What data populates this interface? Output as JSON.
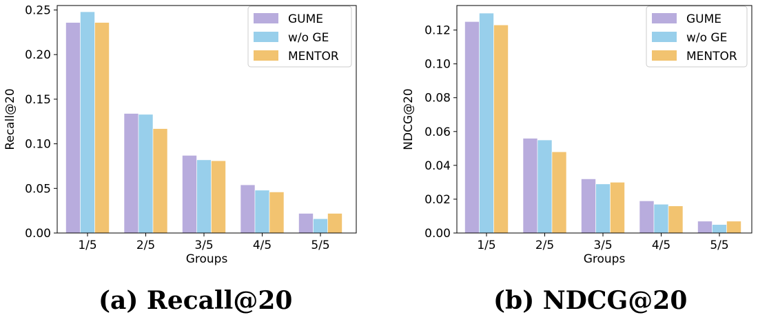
{
  "colors": {
    "GUME": "#b8acdd",
    "w/o GE": "#98cfeb",
    "MENTOR": "#f2c370"
  },
  "chart_data": [
    {
      "type": "bar",
      "caption": "(a) Recall@20",
      "xlabel": "Groups",
      "ylabel": "Recall@20",
      "categories": [
        "1/5",
        "2/5",
        "3/5",
        "4/5",
        "5/5"
      ],
      "ylim": [
        0,
        0.255
      ],
      "yticks": [
        0.0,
        0.05,
        0.1,
        0.15,
        0.2,
        0.25
      ],
      "ytick_labels": [
        "0.00",
        "0.05",
        "0.10",
        "0.15",
        "0.20",
        "0.25"
      ],
      "legend_position": "top-right",
      "series": [
        {
          "name": "GUME",
          "values": [
            0.236,
            0.134,
            0.087,
            0.054,
            0.022
          ]
        },
        {
          "name": "w/o GE",
          "values": [
            0.248,
            0.133,
            0.082,
            0.048,
            0.016
          ]
        },
        {
          "name": "MENTOR",
          "values": [
            0.236,
            0.117,
            0.081,
            0.046,
            0.022
          ]
        }
      ]
    },
    {
      "type": "bar",
      "caption": "(b) NDCG@20",
      "xlabel": "Groups",
      "ylabel": "NDCG@20",
      "categories": [
        "1/5",
        "2/5",
        "3/5",
        "4/5",
        "5/5"
      ],
      "ylim": [
        0,
        0.1345
      ],
      "yticks": [
        0.0,
        0.02,
        0.04,
        0.06,
        0.08,
        0.1,
        0.12
      ],
      "ytick_labels": [
        "0.00",
        "0.02",
        "0.04",
        "0.06",
        "0.08",
        "0.10",
        "0.12"
      ],
      "legend_position": "top-right",
      "series": [
        {
          "name": "GUME",
          "values": [
            0.125,
            0.056,
            0.032,
            0.019,
            0.007
          ]
        },
        {
          "name": "w/o GE",
          "values": [
            0.13,
            0.055,
            0.029,
            0.017,
            0.005
          ]
        },
        {
          "name": "MENTOR",
          "values": [
            0.123,
            0.048,
            0.03,
            0.016,
            0.007
          ]
        }
      ]
    }
  ]
}
